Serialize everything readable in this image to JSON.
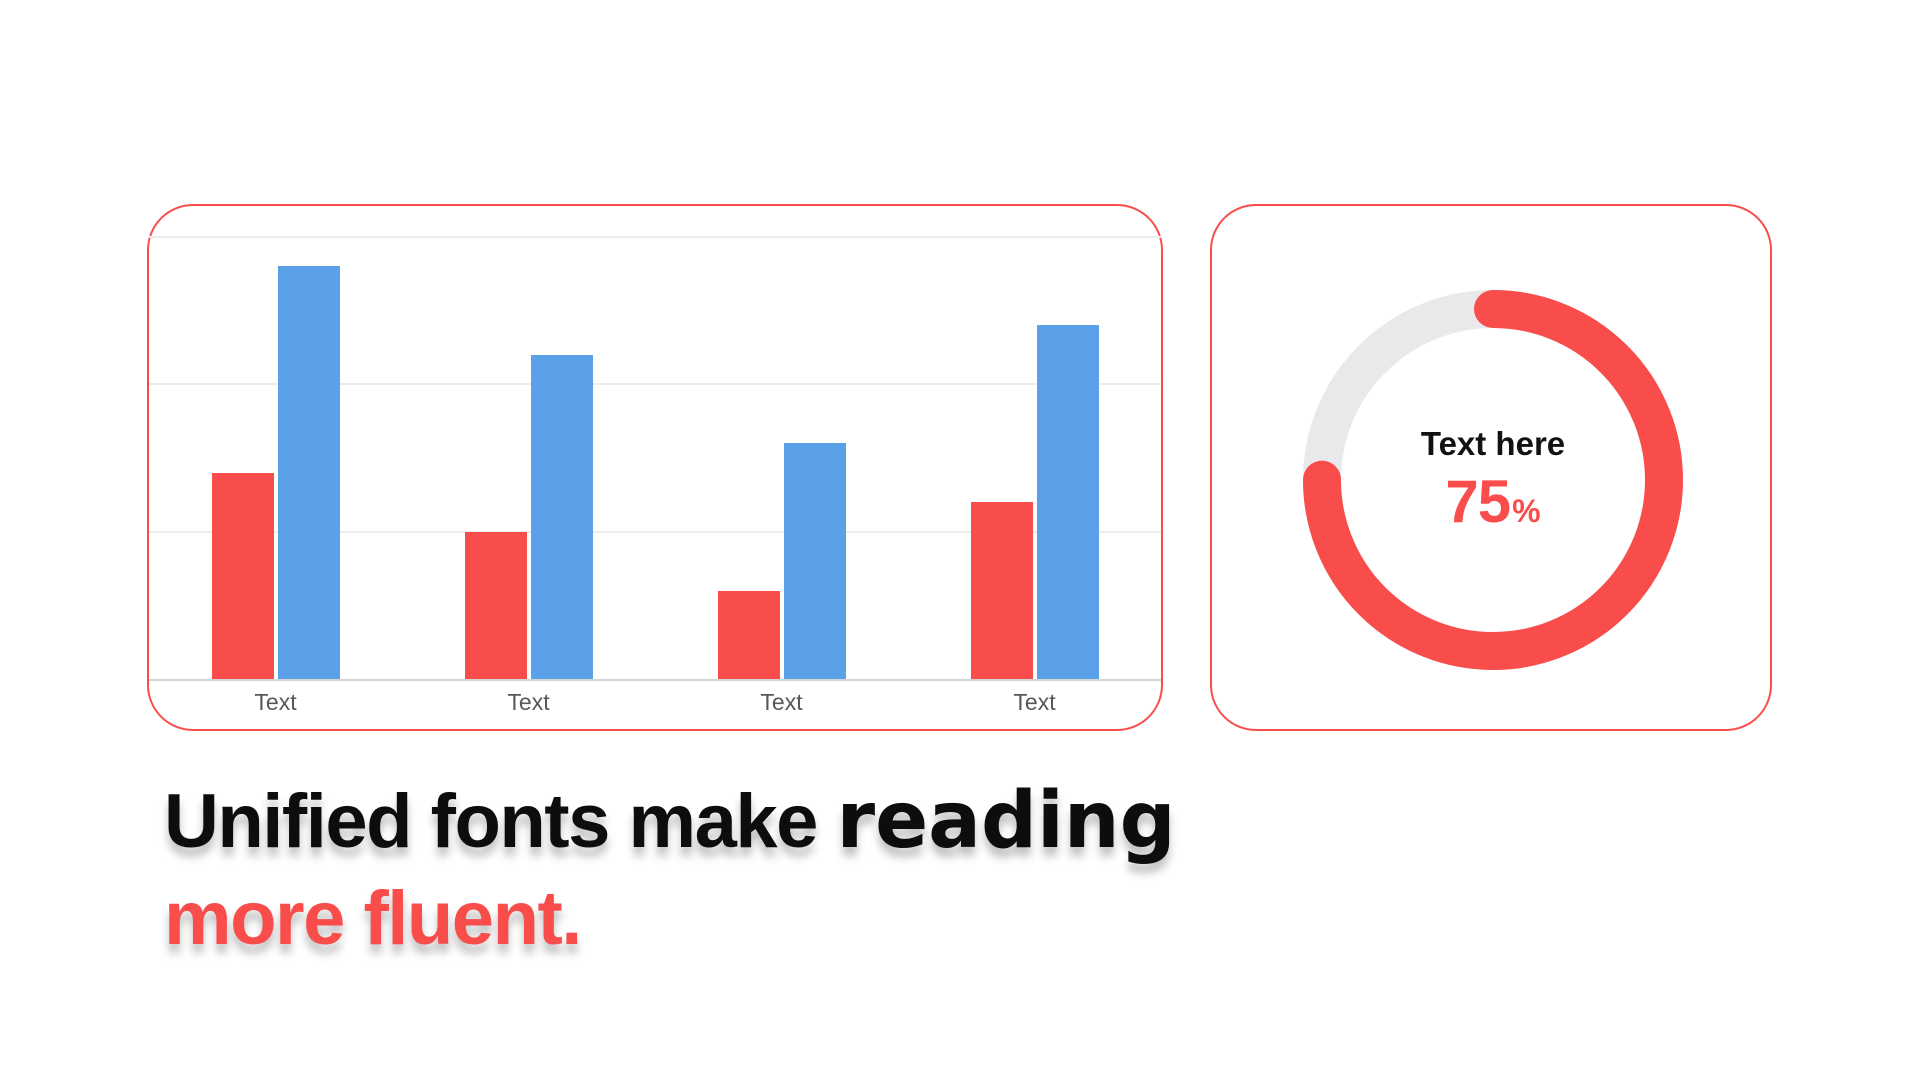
{
  "colors": {
    "accent_red": "#f84d4b",
    "bar_blue": "#5aa1e8",
    "card_border": "#f84d4b",
    "donut_track_gray": "#e9e9ec",
    "gridline_gray": "#ededed",
    "axis_line_gray": "#d5d5d5",
    "axis_label_gray": "#57585a",
    "headline_black": "#0d0d0d"
  },
  "chart_data": [
    {
      "type": "bar",
      "title": "",
      "xlabel": "",
      "ylabel": "",
      "categories": [
        "Text",
        "Text",
        "Text",
        "Text"
      ],
      "series": [
        {
          "name": "red",
          "color": "#f84d4b",
          "values": [
            35,
            25,
            15,
            30
          ]
        },
        {
          "name": "blue",
          "color": "#5aa1e8",
          "values": [
            70,
            55,
            40,
            60
          ]
        }
      ],
      "ylim": [
        0,
        75
      ],
      "gridlines": [
        25,
        50,
        75
      ],
      "grid": true,
      "legend": false
    },
    {
      "type": "donut",
      "label": "Text here",
      "value": 75,
      "unit": "%",
      "ring_color": "#f84d4b",
      "track_color": "#e9e9ec",
      "start_angle": "top",
      "direction": "clockwise"
    }
  ],
  "headline": {
    "line1_part1": "Unified fonts make ",
    "line1_part2": "reading",
    "line2": "more fluent."
  }
}
